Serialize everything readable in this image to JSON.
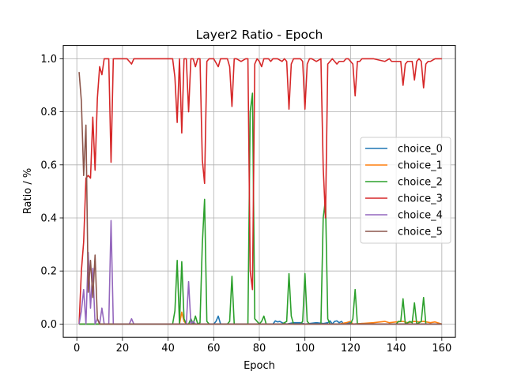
{
  "chart_data": {
    "type": "line",
    "title": "Layer2 Ratio - Epoch",
    "xlabel": "Epoch",
    "ylabel": "Ratio / %",
    "xlim": [
      -5.95,
      165.95
    ],
    "ylim": [
      -0.05,
      1.05
    ],
    "xticks": [
      0,
      20,
      40,
      60,
      80,
      100,
      120,
      140,
      160
    ],
    "yticks": [
      0.0,
      0.2,
      0.4,
      0.6,
      0.8,
      1.0
    ],
    "xtick_labels": [
      "0",
      "20",
      "40",
      "60",
      "80",
      "100",
      "120",
      "140",
      "160"
    ],
    "ytick_labels": [
      "0.0",
      "0.2",
      "0.4",
      "0.6",
      "0.8",
      "1.0"
    ],
    "grid": true,
    "legend_position": "center-right",
    "series": [
      {
        "name": "choice_0",
        "color": "#1f77b4",
        "points": [
          [
            1,
            0
          ],
          [
            5,
            0
          ],
          [
            10,
            0
          ],
          [
            20,
            0
          ],
          [
            40,
            0
          ],
          [
            60,
            0
          ],
          [
            61,
            0.01
          ],
          [
            62,
            0.03
          ],
          [
            63,
            0
          ],
          [
            70,
            0
          ],
          [
            86,
            0
          ],
          [
            87,
            0.012
          ],
          [
            88,
            0.008
          ],
          [
            89,
            0.01
          ],
          [
            90,
            0.005
          ],
          [
            92,
            0
          ],
          [
            95,
            0.005
          ],
          [
            98,
            0.005
          ],
          [
            100,
            0
          ],
          [
            105,
            0.005
          ],
          [
            108,
            0.002
          ],
          [
            110,
            0.005
          ],
          [
            111,
            0.012
          ],
          [
            112,
            0
          ],
          [
            113,
            0.01
          ],
          [
            114,
            0.012
          ],
          [
            115,
            0.005
          ],
          [
            116,
            0.01
          ],
          [
            117,
            0
          ],
          [
            120,
            0.005
          ],
          [
            121,
            0
          ],
          [
            125,
            0.002
          ],
          [
            130,
            0
          ],
          [
            140,
            0
          ],
          [
            150,
            0
          ],
          [
            160,
            0
          ]
        ]
      },
      {
        "name": "choice_1",
        "color": "#ff7f0e",
        "points": [
          [
            1,
            0
          ],
          [
            10,
            0
          ],
          [
            20,
            0
          ],
          [
            40,
            0
          ],
          [
            45,
            0
          ],
          [
            46,
            0.045
          ],
          [
            47,
            0.01
          ],
          [
            48,
            0
          ],
          [
            60,
            0
          ],
          [
            80,
            0
          ],
          [
            100,
            0
          ],
          [
            115,
            0
          ],
          [
            118,
            0.005
          ],
          [
            120,
            0.01
          ],
          [
            121,
            0
          ],
          [
            125,
            0.002
          ],
          [
            130,
            0.005
          ],
          [
            135,
            0.01
          ],
          [
            137,
            0.005
          ],
          [
            140,
            0.008
          ],
          [
            143,
            0.01
          ],
          [
            145,
            0.005
          ],
          [
            148,
            0.01
          ],
          [
            150,
            0.008
          ],
          [
            152,
            0.01
          ],
          [
            155,
            0.005
          ],
          [
            157,
            0.008
          ],
          [
            160,
            0
          ]
        ]
      },
      {
        "name": "choice_2",
        "color": "#2ca02c",
        "points": [
          [
            1,
            0
          ],
          [
            5,
            0
          ],
          [
            10,
            0
          ],
          [
            20,
            0
          ],
          [
            30,
            0
          ],
          [
            40,
            0
          ],
          [
            42,
            0
          ],
          [
            43,
            0.05
          ],
          [
            44,
            0.24
          ],
          [
            45,
            0
          ],
          [
            46,
            0.235
          ],
          [
            47,
            0.02
          ],
          [
            48,
            0
          ],
          [
            49,
            0
          ],
          [
            50,
            0.02
          ],
          [
            51,
            0
          ],
          [
            52,
            0.03
          ],
          [
            53,
            0
          ],
          [
            54,
            0.005
          ],
          [
            55,
            0.3
          ],
          [
            56,
            0.47
          ],
          [
            57,
            0.01
          ],
          [
            58,
            0
          ],
          [
            60,
            0
          ],
          [
            66,
            0
          ],
          [
            67,
            0.01
          ],
          [
            68,
            0.18
          ],
          [
            69,
            0
          ],
          [
            75,
            0
          ],
          [
            76,
            0.8
          ],
          [
            77,
            0.87
          ],
          [
            78,
            0.02
          ],
          [
            79,
            0.01
          ],
          [
            80,
            0
          ],
          [
            81,
            0.01
          ],
          [
            82,
            0.03
          ],
          [
            83,
            0
          ],
          [
            90,
            0
          ],
          [
            91,
            0.005
          ],
          [
            92,
            0.01
          ],
          [
            93,
            0.19
          ],
          [
            94,
            0.03
          ],
          [
            95,
            0
          ],
          [
            98,
            0
          ],
          [
            99,
            0.01
          ],
          [
            100,
            0.19
          ],
          [
            101,
            0.01
          ],
          [
            102,
            0
          ],
          [
            107,
            0
          ],
          [
            108,
            0.4
          ],
          [
            109,
            0.47
          ],
          [
            110,
            0.02
          ],
          [
            111,
            0
          ],
          [
            120,
            0
          ],
          [
            121,
            0.02
          ],
          [
            122,
            0.13
          ],
          [
            123,
            0
          ],
          [
            140,
            0
          ],
          [
            141,
            0.01
          ],
          [
            142,
            0.01
          ],
          [
            143,
            0.095
          ],
          [
            144,
            0
          ],
          [
            146,
            0.01
          ],
          [
            147,
            0.005
          ],
          [
            148,
            0.08
          ],
          [
            149,
            0
          ],
          [
            151,
            0.01
          ],
          [
            152,
            0.1
          ],
          [
            153,
            0
          ],
          [
            155,
            0
          ],
          [
            160,
            0
          ]
        ]
      },
      {
        "name": "choice_3",
        "color": "#d62728",
        "points": [
          [
            1,
            0
          ],
          [
            2,
            0.2
          ],
          [
            3,
            0.31
          ],
          [
            4,
            0.55
          ],
          [
            5,
            0.56
          ],
          [
            6,
            0.55
          ],
          [
            7,
            0.78
          ],
          [
            8,
            0.58
          ],
          [
            9,
            0.85
          ],
          [
            10,
            0.97
          ],
          [
            11,
            0.94
          ],
          [
            12,
            1.0
          ],
          [
            13,
            1.0
          ],
          [
            14,
            1.0
          ],
          [
            15,
            0.61
          ],
          [
            16,
            1.0
          ],
          [
            18,
            1.0
          ],
          [
            20,
            1.0
          ],
          [
            22,
            1.0
          ],
          [
            24,
            0.98
          ],
          [
            25,
            1.0
          ],
          [
            30,
            1.0
          ],
          [
            35,
            1.0
          ],
          [
            40,
            1.0
          ],
          [
            42,
            1.0
          ],
          [
            43,
            0.93
          ],
          [
            44,
            0.76
          ],
          [
            45,
            1.0
          ],
          [
            46,
            0.72
          ],
          [
            47,
            1.0
          ],
          [
            48,
            1.0
          ],
          [
            49,
            0.8
          ],
          [
            50,
            1.0
          ],
          [
            51,
            1.0
          ],
          [
            52,
            0.97
          ],
          [
            53,
            1.0
          ],
          [
            54,
            1.0
          ],
          [
            55,
            0.62
          ],
          [
            56,
            0.53
          ],
          [
            57,
            0.99
          ],
          [
            58,
            1.0
          ],
          [
            60,
            1.0
          ],
          [
            62,
            0.97
          ],
          [
            63,
            1.0
          ],
          [
            66,
            1.0
          ],
          [
            67,
            0.97
          ],
          [
            68,
            0.82
          ],
          [
            69,
            1.0
          ],
          [
            70,
            1.0
          ],
          [
            72,
            0.99
          ],
          [
            74,
            1.0
          ],
          [
            75,
            1.0
          ],
          [
            76,
            0.2
          ],
          [
            77,
            0.13
          ],
          [
            78,
            0.98
          ],
          [
            79,
            1.0
          ],
          [
            80,
            0.99
          ],
          [
            81,
            0.97
          ],
          [
            82,
            1.0
          ],
          [
            84,
            1.0
          ],
          [
            85,
            0.99
          ],
          [
            86,
            1.0
          ],
          [
            88,
            1.0
          ],
          [
            90,
            0.99
          ],
          [
            91,
            1.0
          ],
          [
            92,
            0.99
          ],
          [
            93,
            0.81
          ],
          [
            94,
            0.98
          ],
          [
            95,
            1.0
          ],
          [
            96,
            1.0
          ],
          [
            98,
            1.0
          ],
          [
            99,
            0.99
          ],
          [
            100,
            0.81
          ],
          [
            101,
            0.98
          ],
          [
            102,
            1.0
          ],
          [
            103,
            1.0
          ],
          [
            105,
            0.99
          ],
          [
            107,
            1.0
          ],
          [
            108,
            0.59
          ],
          [
            109,
            0.4
          ],
          [
            110,
            0.98
          ],
          [
            111,
            0.99
          ],
          [
            112,
            1.0
          ],
          [
            113,
            0.99
          ],
          [
            114,
            0.98
          ],
          [
            115,
            0.99
          ],
          [
            117,
            0.99
          ],
          [
            118,
            1.0
          ],
          [
            119,
            1.0
          ],
          [
            120,
            0.99
          ],
          [
            121,
            0.98
          ],
          [
            122,
            0.86
          ],
          [
            123,
            0.99
          ],
          [
            124,
            0.99
          ],
          [
            125,
            1.0
          ],
          [
            130,
            1.0
          ],
          [
            135,
            0.99
          ],
          [
            137,
            1.0
          ],
          [
            138,
            0.99
          ],
          [
            140,
            0.99
          ],
          [
            141,
            0.99
          ],
          [
            142,
            0.99
          ],
          [
            143,
            0.9
          ],
          [
            144,
            0.98
          ],
          [
            145,
            0.99
          ],
          [
            146,
            0.99
          ],
          [
            147,
            0.99
          ],
          [
            148,
            0.92
          ],
          [
            149,
            0.99
          ],
          [
            150,
            1.0
          ],
          [
            151,
            0.99
          ],
          [
            152,
            0.89
          ],
          [
            153,
            0.98
          ],
          [
            154,
            0.99
          ],
          [
            155,
            0.99
          ],
          [
            157,
            1.0
          ],
          [
            160,
            1.0
          ]
        ]
      },
      {
        "name": "choice_4",
        "color": "#9467bd",
        "points": [
          [
            1,
            0
          ],
          [
            2,
            0.05
          ],
          [
            3,
            0.13
          ],
          [
            4,
            0
          ],
          [
            5,
            0.27
          ],
          [
            6,
            0.06
          ],
          [
            7,
            0.21
          ],
          [
            8,
            0
          ],
          [
            9,
            0.02
          ],
          [
            10,
            0
          ],
          [
            11,
            0.06
          ],
          [
            12,
            0
          ],
          [
            13,
            0
          ],
          [
            14,
            0
          ],
          [
            15,
            0.39
          ],
          [
            16,
            0
          ],
          [
            18,
            0
          ],
          [
            20,
            0
          ],
          [
            23,
            0
          ],
          [
            24,
            0.02
          ],
          [
            25,
            0
          ],
          [
            30,
            0
          ],
          [
            40,
            0
          ],
          [
            48,
            0
          ],
          [
            49,
            0.16
          ],
          [
            50,
            0
          ],
          [
            51,
            0.01
          ],
          [
            52,
            0
          ],
          [
            60,
            0
          ],
          [
            80,
            0
          ],
          [
            100,
            0
          ],
          [
            120,
            0
          ],
          [
            140,
            0
          ],
          [
            160,
            0
          ]
        ]
      },
      {
        "name": "choice_5",
        "color": "#8c564b",
        "points": [
          [
            1,
            0.95
          ],
          [
            2,
            0.84
          ],
          [
            3,
            0.56
          ],
          [
            4,
            0.75
          ],
          [
            5,
            0.12
          ],
          [
            6,
            0.24
          ],
          [
            7,
            0.1
          ],
          [
            8,
            0.26
          ],
          [
            9,
            0.02
          ],
          [
            10,
            0
          ],
          [
            12,
            0
          ],
          [
            20,
            0
          ],
          [
            40,
            0
          ],
          [
            60,
            0
          ],
          [
            80,
            0
          ],
          [
            100,
            0
          ],
          [
            120,
            0
          ],
          [
            140,
            0
          ],
          [
            160,
            0
          ]
        ]
      }
    ]
  }
}
